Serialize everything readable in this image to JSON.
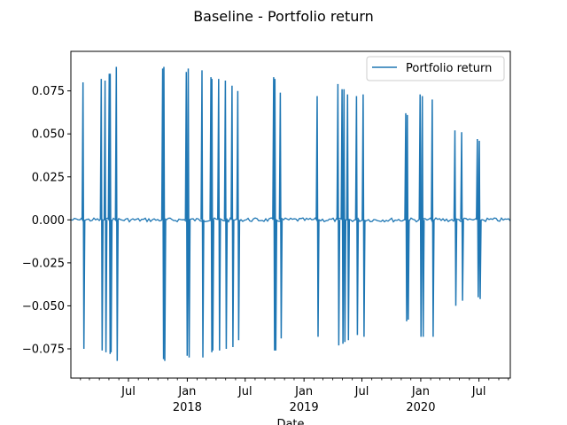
{
  "chart_data": {
    "type": "line",
    "title": "Baseline - Portfolio return",
    "xlabel": "Date",
    "ylabel": "",
    "ylim": [
      -0.092,
      0.098
    ],
    "xlim": [
      "2017-01-02",
      "2020-10-07"
    ],
    "grid": false,
    "legend_position": "top-right",
    "y_ticks": [
      "−0.075",
      "−0.050",
      "−0.025",
      "0.000",
      "0.025",
      "0.050",
      "0.075"
    ],
    "y_tick_values": [
      -0.075,
      -0.05,
      -0.025,
      0.0,
      0.025,
      0.05,
      0.075
    ],
    "x_ticks": [
      {
        "date": "2017-07-01",
        "label": "Jul",
        "sub": ""
      },
      {
        "date": "2018-01-01",
        "label": "Jan",
        "sub": "2018"
      },
      {
        "date": "2018-07-01",
        "label": "Jul",
        "sub": ""
      },
      {
        "date": "2019-01-01",
        "label": "Jan",
        "sub": "2019"
      },
      {
        "date": "2019-07-01",
        "label": "Jul",
        "sub": ""
      },
      {
        "date": "2020-01-01",
        "label": "Jan",
        "sub": "2020"
      },
      {
        "date": "2020-07-01",
        "label": "Jul",
        "sub": ""
      }
    ],
    "minor_tick_months": [
      "2017-02-01",
      "2017-03-01",
      "2017-04-01",
      "2017-05-01",
      "2017-06-01",
      "2017-08-01",
      "2017-09-01",
      "2017-10-01",
      "2017-11-01",
      "2017-12-01",
      "2018-02-01",
      "2018-03-01",
      "2018-04-01",
      "2018-05-01",
      "2018-06-01",
      "2018-08-01",
      "2018-09-01",
      "2018-10-01",
      "2018-11-01",
      "2018-12-01",
      "2019-02-01",
      "2019-03-01",
      "2019-04-01",
      "2019-05-01",
      "2019-06-01",
      "2019-08-01",
      "2019-09-01",
      "2019-10-01",
      "2019-11-01",
      "2019-12-01",
      "2020-02-01",
      "2020-03-01",
      "2020-04-01",
      "2020-05-01",
      "2020-06-01",
      "2020-08-01",
      "2020-09-01",
      "2020-10-01"
    ],
    "series": [
      {
        "name": "Portfolio return",
        "color": "#1f77b4",
        "spikes": [
          {
            "date": "2017-02-09",
            "up": 0.08,
            "down": -0.075
          },
          {
            "date": "2017-04-07",
            "up": 0.082,
            "down": -0.076
          },
          {
            "date": "2017-04-19",
            "up": 0.081,
            "down": -0.077
          },
          {
            "date": "2017-05-02",
            "up": 0.085,
            "down": -0.078
          },
          {
            "date": "2017-05-05",
            "up": 0.085,
            "down": -0.077
          },
          {
            "date": "2017-05-24",
            "up": 0.089,
            "down": -0.082
          },
          {
            "date": "2017-10-16",
            "up": 0.088,
            "down": -0.081
          },
          {
            "date": "2017-10-20",
            "up": 0.089,
            "down": -0.082
          },
          {
            "date": "2017-12-29",
            "up": 0.086,
            "down": -0.079
          },
          {
            "date": "2018-01-04",
            "up": 0.088,
            "down": -0.08
          },
          {
            "date": "2018-02-16",
            "up": 0.087,
            "down": -0.08
          },
          {
            "date": "2018-03-16",
            "up": 0.083,
            "down": -0.077
          },
          {
            "date": "2018-03-19",
            "up": 0.082,
            "down": -0.076
          },
          {
            "date": "2018-04-09",
            "up": 0.082,
            "down": -0.076
          },
          {
            "date": "2018-04-30",
            "up": 0.081,
            "down": -0.075
          },
          {
            "date": "2018-05-21",
            "up": 0.078,
            "down": -0.074
          },
          {
            "date": "2018-06-08",
            "up": 0.075,
            "down": -0.07
          },
          {
            "date": "2018-09-28",
            "up": 0.083,
            "down": -0.076
          },
          {
            "date": "2018-10-02",
            "up": 0.082,
            "down": -0.076
          },
          {
            "date": "2018-10-19",
            "up": 0.074,
            "down": -0.069
          },
          {
            "date": "2019-02-11",
            "up": 0.072,
            "down": -0.068
          },
          {
            "date": "2019-04-17",
            "up": 0.079,
            "down": -0.073
          },
          {
            "date": "2019-04-30",
            "up": 0.076,
            "down": -0.072
          },
          {
            "date": "2019-05-06",
            "up": 0.076,
            "down": -0.071
          },
          {
            "date": "2019-05-17",
            "up": 0.073,
            "down": -0.07
          },
          {
            "date": "2019-06-14",
            "up": 0.072,
            "down": -0.067
          },
          {
            "date": "2019-07-05",
            "up": 0.073,
            "down": -0.068
          },
          {
            "date": "2019-11-15",
            "up": 0.062,
            "down": -0.059
          },
          {
            "date": "2019-11-20",
            "up": 0.061,
            "down": -0.058
          },
          {
            "date": "2019-12-30",
            "up": 0.073,
            "down": -0.068
          },
          {
            "date": "2020-01-06",
            "up": 0.072,
            "down": -0.068
          },
          {
            "date": "2020-02-06",
            "up": 0.07,
            "down": -0.068
          },
          {
            "date": "2020-04-17",
            "up": 0.052,
            "down": -0.05
          },
          {
            "date": "2020-05-08",
            "up": 0.051,
            "down": -0.047
          },
          {
            "date": "2020-06-26",
            "up": 0.047,
            "down": -0.045
          },
          {
            "date": "2020-07-02",
            "up": 0.046,
            "down": -0.046
          }
        ]
      }
    ]
  }
}
